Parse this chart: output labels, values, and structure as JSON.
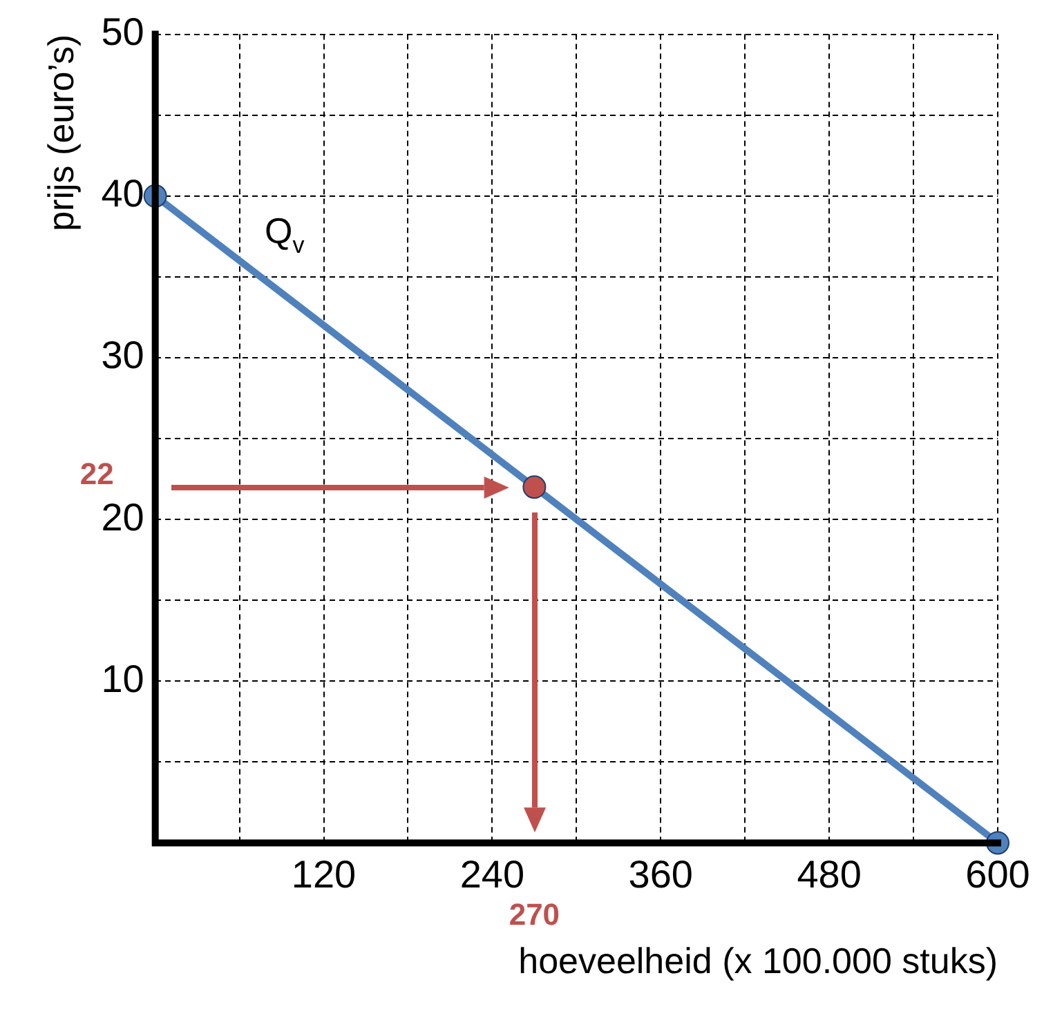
{
  "chart_data": {
    "type": "line",
    "xlabel": "hoeveelheid (x 100.000 stuks)",
    "ylabel": "prijs (euro’s)",
    "x": [
      0,
      600
    ],
    "series": [
      {
        "name": "Q$_{v}$",
        "color": "#4f81bd",
        "values": [
          40,
          0
        ],
        "type": "line"
      },
      {
        "color": "#c0504d",
        "x": [
          270
        ],
        "values": [
          22
        ],
        "type": "scatter"
      }
    ],
    "xlim": [
      0,
      600
    ],
    "xticks": [
      {
        "value": 0,
        "label": null
      },
      {
        "value": 60,
        "label": null
      },
      120,
      {
        "value": 180,
        "label": null
      },
      240,
      {
        "value": 300,
        "label": null
      },
      360,
      {
        "value": 420,
        "label": null
      },
      480,
      {
        "value": 540,
        "label": null
      },
      600
    ],
    "ylim": [
      0,
      50
    ],
    "yticks": [
      {
        "value": 0,
        "label": null
      },
      {
        "value": 5,
        "label": null
      },
      10,
      {
        "value": 15,
        "label": null
      },
      20,
      {
        "value": 25,
        "label": null
      },
      30,
      {
        "value": 35,
        "label": null
      },
      40,
      {
        "value": 45,
        "label": null
      },
      50
    ],
    "ref_lines": [
      {
        "axis": "y",
        "value": 22,
        "label": "22",
        "color": "#c0504d"
      },
      {
        "axis": "x",
        "value": 270,
        "label": "270",
        "color": "#c0504d"
      }
    ],
    "grid": true,
    "legend": false,
    "marker": "circle"
  }
}
